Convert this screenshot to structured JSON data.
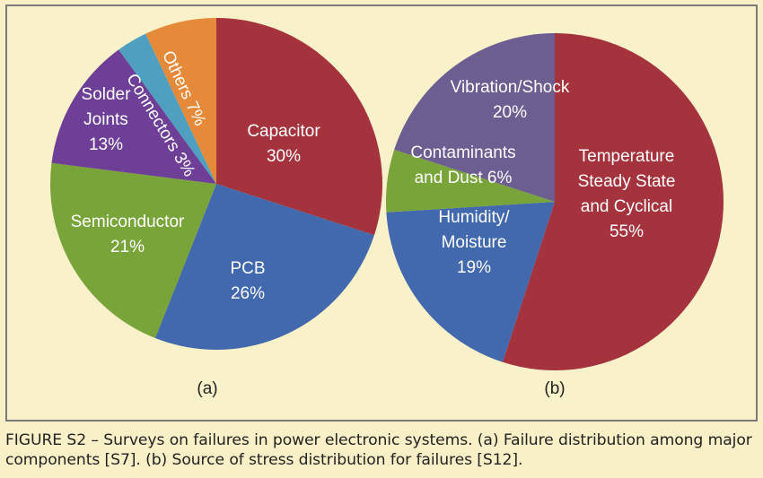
{
  "caption": "FIGURE S2 – Surveys on failures in power electronic systems. (a) Failure distribution among major components [S7]. (b) Source of stress distribution for failures [S12].",
  "chart_data": [
    {
      "type": "pie",
      "panel_label": "(a)",
      "slices": [
        {
          "name": "Capacitor",
          "value": 30,
          "label_lines": [
            "Capacitor",
            "30%"
          ],
          "color": "#a4333e"
        },
        {
          "name": "PCB",
          "value": 26,
          "label_lines": [
            "PCB",
            "26%"
          ],
          "color": "#4268ad"
        },
        {
          "name": "Semiconductor",
          "value": 21,
          "label_lines": [
            "Semiconductor",
            "21%"
          ],
          "color": "#78a43a"
        },
        {
          "name": "Solder Joints",
          "value": 13,
          "label_lines": [
            "Solder",
            "Joints",
            "13%"
          ],
          "color": "#6d3f97"
        },
        {
          "name": "Connectors",
          "value": 3,
          "label_lines": [
            "Connectors 3%"
          ],
          "color": "#4e9fc0"
        },
        {
          "name": "Others",
          "value": 7,
          "label_lines": [
            "Others 7%"
          ],
          "color": "#e58a38"
        }
      ]
    },
    {
      "type": "pie",
      "panel_label": "(b)",
      "slices": [
        {
          "name": "Temperature Steady State and Cyclical",
          "value": 55,
          "label_lines": [
            "Temperature",
            "Steady State",
            "and Cyclical",
            "55%"
          ],
          "color": "#a4333e"
        },
        {
          "name": "Humidity/Moisture",
          "value": 19,
          "label_lines": [
            "Humidity/",
            "Moisture",
            "19%"
          ],
          "color": "#4268ad"
        },
        {
          "name": "Contaminants and Dust",
          "value": 6,
          "label_lines": [
            "Contaminants",
            "and Dust 6%"
          ],
          "color": "#78a43a"
        },
        {
          "name": "Vibration/Shock",
          "value": 20,
          "label_lines": [
            "Vibration/Shock",
            "20%"
          ],
          "color": "#6d5e91"
        }
      ]
    }
  ]
}
